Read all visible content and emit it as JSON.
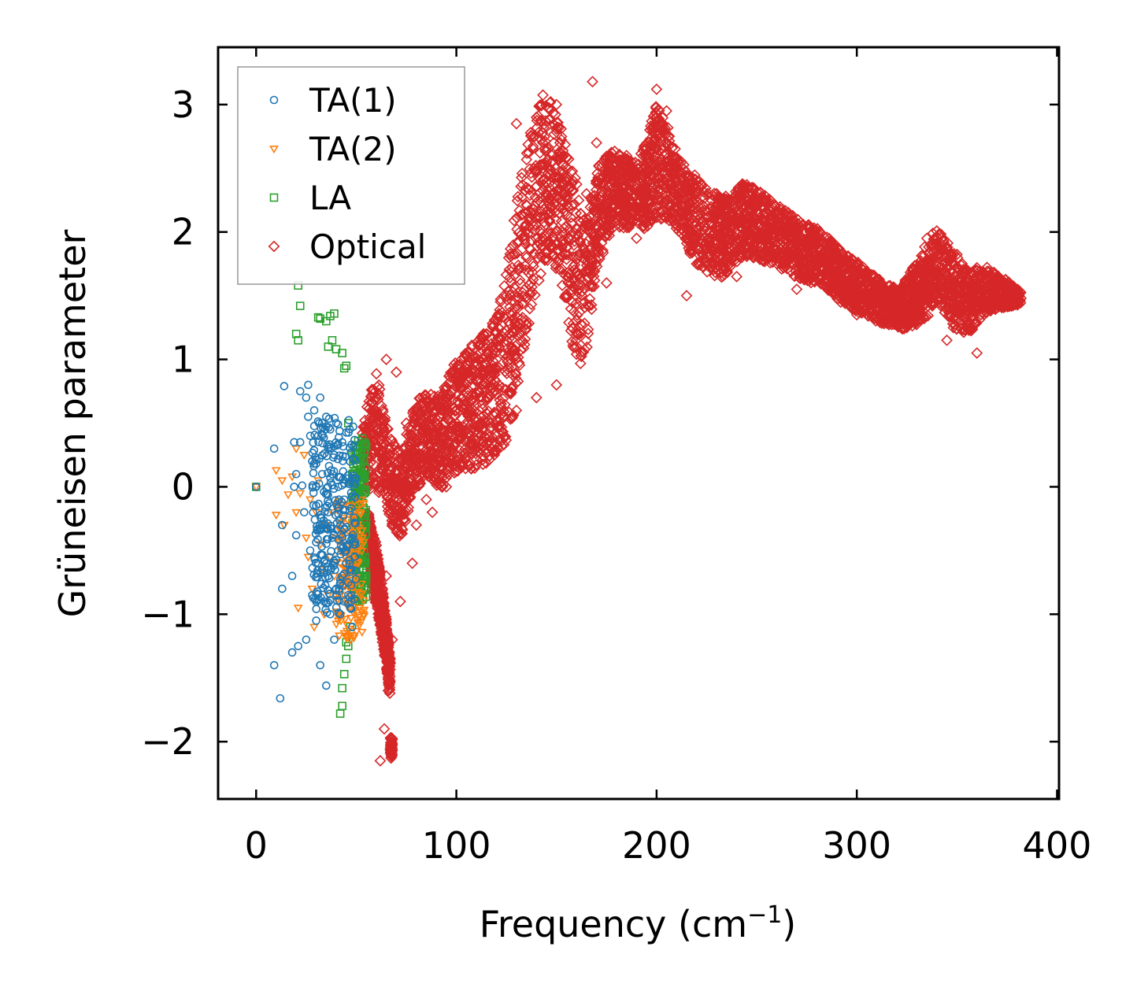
{
  "chart_data": {
    "type": "scatter",
    "title": "",
    "xlabel": "Frequency (cm",
    "xlabel_sup": "−1",
    "xlabel_tail": ")",
    "ylabel": "Grüneisen parameter",
    "xlim": [
      -19,
      401
    ],
    "ylim": [
      -2.45,
      3.45
    ],
    "xticks": [
      0,
      100,
      200,
      300,
      400
    ],
    "xtick_labels": [
      "0",
      "100",
      "200",
      "300",
      "400"
    ],
    "yticks": [
      -2,
      -1,
      0,
      1,
      2,
      3
    ],
    "ytick_labels": [
      "−2",
      "−1",
      "0",
      "1",
      "2",
      "3"
    ],
    "grid": false,
    "legend_position": "top-left",
    "series": [
      {
        "name": "TA(1)",
        "marker": "circle",
        "color": "#1f77b4",
        "points": [
          [
            0,
            0
          ],
          [
            9,
            0.3
          ],
          [
            9,
            -1.4
          ],
          [
            12,
            -1.66
          ],
          [
            13,
            -0.3
          ],
          [
            13,
            -0.8
          ],
          [
            14,
            0.79
          ],
          [
            18,
            -0.7
          ],
          [
            18,
            -1.3
          ],
          [
            19,
            0.35
          ],
          [
            19,
            0
          ],
          [
            20,
            0.1
          ],
          [
            20,
            -0.38
          ],
          [
            21,
            -1.25
          ],
          [
            22,
            0.75
          ],
          [
            22,
            0.35
          ],
          [
            23,
            0.01
          ],
          [
            24,
            -0.2
          ],
          [
            25,
            -1.2
          ],
          [
            25,
            0.7
          ],
          [
            26,
            0.55
          ],
          [
            26,
            0.8
          ],
          [
            27,
            -0.5
          ],
          [
            27,
            0.4
          ],
          [
            28,
            -0.85
          ],
          [
            28,
            0.2
          ],
          [
            29,
            0.6
          ],
          [
            30,
            0
          ],
          [
            30,
            -1.05
          ],
          [
            31,
            0.4
          ],
          [
            31,
            -0.6
          ],
          [
            32,
            0.7
          ],
          [
            32,
            -1.4
          ],
          [
            33,
            0.5
          ],
          [
            33,
            0.1
          ],
          [
            34,
            -0.3
          ],
          [
            34,
            -0.9
          ],
          [
            35,
            0.55
          ],
          [
            35,
            -0.6
          ],
          [
            35,
            -1.56
          ],
          [
            36,
            0.3
          ],
          [
            36,
            -0.2
          ],
          [
            37,
            0.45
          ],
          [
            37,
            -1.0
          ],
          [
            38,
            0.1
          ],
          [
            38,
            -0.4
          ],
          [
            39,
            -1.2
          ],
          [
            39,
            0.25
          ],
          [
            40,
            -0.8
          ],
          [
            40,
            0.5
          ],
          [
            41,
            -0.5
          ],
          [
            41,
            0
          ],
          [
            42,
            -0.3
          ],
          [
            42,
            -1.0
          ],
          [
            43,
            0.35
          ],
          [
            43,
            -0.7
          ],
          [
            44,
            -0.1
          ],
          [
            44,
            -0.9
          ],
          [
            45,
            -0.5
          ],
          [
            45,
            -0.6
          ],
          [
            46,
            -0.75
          ],
          [
            46,
            -0.85
          ],
          [
            47,
            -0.65
          ],
          [
            47,
            -0.95
          ],
          [
            48,
            -0.4
          ],
          [
            48,
            -1.1
          ],
          [
            49,
            -0.55
          ]
        ]
      },
      {
        "name": "TA(2)",
        "marker": "triangle-down",
        "color": "#ff7f0e",
        "points": [
          [
            0,
            0
          ],
          [
            10,
            0.13
          ],
          [
            10,
            -0.22
          ],
          [
            13,
            0.05
          ],
          [
            14,
            -0.3
          ],
          [
            16,
            -0.06
          ],
          [
            18,
            0.08
          ],
          [
            20,
            0.3
          ],
          [
            20,
            -0.2
          ],
          [
            21,
            -0.95
          ],
          [
            22,
            -0.05
          ],
          [
            24,
            0.25
          ],
          [
            25,
            -0.4
          ],
          [
            26,
            -0.55
          ],
          [
            27,
            -0.1
          ],
          [
            28,
            -0.8
          ],
          [
            29,
            -1.1
          ],
          [
            30,
            -0.2
          ],
          [
            31,
            0.05
          ],
          [
            32,
            -0.45
          ],
          [
            33,
            -0.65
          ],
          [
            34,
            -1.0
          ],
          [
            35,
            -0.3
          ],
          [
            36,
            -0.85
          ],
          [
            37,
            -0.55
          ],
          [
            38,
            -0.2
          ],
          [
            39,
            -0.7
          ],
          [
            40,
            -0.4
          ],
          [
            41,
            -0.9
          ],
          [
            42,
            -0.6
          ],
          [
            43,
            -0.35
          ],
          [
            44,
            -1.15
          ],
          [
            45,
            -0.75
          ],
          [
            46,
            -0.5
          ],
          [
            47,
            -1.2
          ],
          [
            48,
            -0.3
          ],
          [
            49,
            -0.9
          ],
          [
            50,
            -0.45
          ],
          [
            51,
            -0.6
          ],
          [
            52,
            -0.2
          ],
          [
            53,
            -0.4
          ]
        ]
      },
      {
        "name": "LA",
        "marker": "square",
        "color": "#2ca02c",
        "points": [
          [
            0,
            0
          ],
          [
            21,
            1.58
          ],
          [
            22,
            1.42
          ],
          [
            20,
            1.2
          ],
          [
            21,
            1.15
          ],
          [
            31,
            1.33
          ],
          [
            32,
            1.32
          ],
          [
            35,
            1.3
          ],
          [
            37,
            1.34
          ],
          [
            39,
            1.36
          ],
          [
            36,
            1.1
          ],
          [
            38,
            1.15
          ],
          [
            40,
            1.08
          ],
          [
            43,
            1.05
          ],
          [
            45,
            0.95
          ],
          [
            44,
            0.93
          ],
          [
            46,
            0.5
          ],
          [
            51,
            0.36
          ],
          [
            53,
            0.38
          ],
          [
            45,
            -1.35
          ],
          [
            44,
            -1.47
          ],
          [
            43,
            -1.58
          ],
          [
            43,
            -1.72
          ],
          [
            42,
            -1.78
          ],
          [
            45,
            -1.22
          ],
          [
            46,
            -1.25
          ],
          [
            47,
            -1.1
          ],
          [
            48,
            -0.95
          ],
          [
            49,
            -0.8
          ],
          [
            50,
            -0.65
          ],
          [
            51,
            -0.5
          ],
          [
            52,
            -0.35
          ],
          [
            53,
            -0.2
          ],
          [
            54,
            -0.05
          ],
          [
            53,
            0.1
          ],
          [
            52,
            0.05
          ],
          [
            51,
            -0.1
          ],
          [
            52,
            -0.3
          ],
          [
            53,
            -0.45
          ],
          [
            54,
            -0.25
          ],
          [
            50,
            -0.15
          ],
          [
            49,
            -0.4
          ]
        ]
      },
      {
        "name": "Optical",
        "marker": "diamond",
        "color": "#d62728",
        "points": [
          [
            168,
            3.18
          ],
          [
            200,
            3.12
          ],
          [
            205,
            2.95
          ],
          [
            150,
            3.0
          ],
          [
            140,
            2.9
          ],
          [
            130,
            2.85
          ],
          [
            170,
            2.7
          ],
          [
            185,
            2.6
          ],
          [
            210,
            2.5
          ],
          [
            230,
            2.3
          ],
          [
            245,
            2.35
          ],
          [
            250,
            2.2
          ],
          [
            265,
            2.05
          ],
          [
            280,
            1.9
          ],
          [
            300,
            1.75
          ],
          [
            305,
            1.6
          ],
          [
            320,
            1.45
          ],
          [
            335,
            1.95
          ],
          [
            340,
            1.7
          ],
          [
            355,
            1.6
          ],
          [
            370,
            1.55
          ],
          [
            382,
            1.48
          ],
          [
            360,
            1.05
          ],
          [
            345,
            1.15
          ],
          [
            325,
            1.25
          ],
          [
            300,
            1.35
          ],
          [
            270,
            1.55
          ],
          [
            240,
            1.65
          ],
          [
            215,
            1.5
          ],
          [
            190,
            1.95
          ],
          [
            175,
            1.6
          ],
          [
            160,
            1.1
          ],
          [
            150,
            0.8
          ],
          [
            140,
            0.7
          ],
          [
            130,
            0.6
          ],
          [
            120,
            0.4
          ],
          [
            110,
            0.3
          ],
          [
            100,
            0.2
          ],
          [
            95,
            0.0
          ],
          [
            90,
            0.1
          ],
          [
            85,
            -0.1
          ],
          [
            80,
            -0.3
          ],
          [
            75,
            0.5
          ],
          [
            70,
            0.9
          ],
          [
            65,
            1.0
          ],
          [
            60,
            0.7
          ],
          [
            55,
            0.4
          ],
          [
            53,
            0.2
          ],
          [
            55,
            -0.3
          ],
          [
            60,
            -0.5
          ],
          [
            65,
            -0.7
          ],
          [
            68,
            -1.2
          ],
          [
            66,
            -1.6
          ],
          [
            64,
            -1.9
          ],
          [
            62,
            -2.15
          ],
          [
            72,
            -0.9
          ],
          [
            78,
            -0.6
          ],
          [
            88,
            -0.2
          ],
          [
            105,
            0.9
          ],
          [
            115,
            1.2
          ],
          [
            125,
            1.5
          ],
          [
            135,
            1.8
          ],
          [
            145,
            2.2
          ],
          [
            155,
            2.4
          ],
          [
            165,
            2.3
          ],
          [
            178,
            2.4
          ],
          [
            195,
            2.6
          ],
          [
            220,
            2.3
          ],
          [
            255,
            1.95
          ],
          [
            290,
            1.65
          ],
          [
            310,
            1.55
          ],
          [
            330,
            1.35
          ],
          [
            350,
            1.4
          ]
        ]
      }
    ],
    "optical_band": {
      "center": [
        [
          53,
          0.2
        ],
        [
          60,
          0.45
        ],
        [
          66,
          0.1
        ],
        [
          72,
          -0.1
        ],
        [
          78,
          0.3
        ],
        [
          85,
          0.4
        ],
        [
          92,
          0.35
        ],
        [
          100,
          0.55
        ],
        [
          110,
          0.65
        ],
        [
          118,
          0.75
        ],
        [
          125,
          1.0
        ],
        [
          132,
          1.6
        ],
        [
          138,
          2.2
        ],
        [
          145,
          2.45
        ],
        [
          152,
          2.25
        ],
        [
          158,
          1.8
        ],
        [
          164,
          1.5
        ],
        [
          170,
          2.1
        ],
        [
          178,
          2.35
        ],
        [
          186,
          2.3
        ],
        [
          194,
          2.35
        ],
        [
          200,
          2.55
        ],
        [
          206,
          2.45
        ],
        [
          214,
          2.2
        ],
        [
          222,
          2.05
        ],
        [
          232,
          1.95
        ],
        [
          244,
          2.1
        ],
        [
          252,
          2.05
        ],
        [
          262,
          1.95
        ],
        [
          272,
          1.85
        ],
        [
          282,
          1.8
        ],
        [
          292,
          1.65
        ],
        [
          302,
          1.55
        ],
        [
          312,
          1.45
        ],
        [
          322,
          1.4
        ],
        [
          332,
          1.55
        ],
        [
          340,
          1.75
        ],
        [
          348,
          1.55
        ],
        [
          356,
          1.45
        ],
        [
          364,
          1.55
        ],
        [
          374,
          1.52
        ],
        [
          382,
          1.48
        ]
      ],
      "spread": [
        [
          53,
          0.3
        ],
        [
          60,
          0.45
        ],
        [
          66,
          0.35
        ],
        [
          72,
          0.35
        ],
        [
          80,
          0.35
        ],
        [
          90,
          0.35
        ],
        [
          100,
          0.45
        ],
        [
          110,
          0.5
        ],
        [
          120,
          0.55
        ],
        [
          130,
          0.8
        ],
        [
          140,
          0.75
        ],
        [
          150,
          0.6
        ],
        [
          160,
          0.7
        ],
        [
          170,
          0.4
        ],
        [
          180,
          0.3
        ],
        [
          190,
          0.25
        ],
        [
          200,
          0.45
        ],
        [
          210,
          0.3
        ],
        [
          220,
          0.35
        ],
        [
          240,
          0.3
        ],
        [
          260,
          0.25
        ],
        [
          280,
          0.22
        ],
        [
          300,
          0.2
        ],
        [
          320,
          0.15
        ],
        [
          335,
          0.3
        ],
        [
          350,
          0.3
        ],
        [
          365,
          0.18
        ],
        [
          382,
          0.05
        ]
      ],
      "lower_tail_center": [
        [
          56,
          -0.4
        ],
        [
          60,
          -0.7
        ],
        [
          64,
          -1.1
        ],
        [
          67,
          -1.5
        ],
        [
          64,
          -1.85
        ],
        [
          62,
          -2.05
        ]
      ],
      "lower_tail_spread": [
        [
          56,
          0.2
        ],
        [
          60,
          0.25
        ],
        [
          64,
          0.2
        ],
        [
          67,
          0.15
        ],
        [
          64,
          0.12
        ],
        [
          62,
          0.08
        ]
      ]
    }
  }
}
